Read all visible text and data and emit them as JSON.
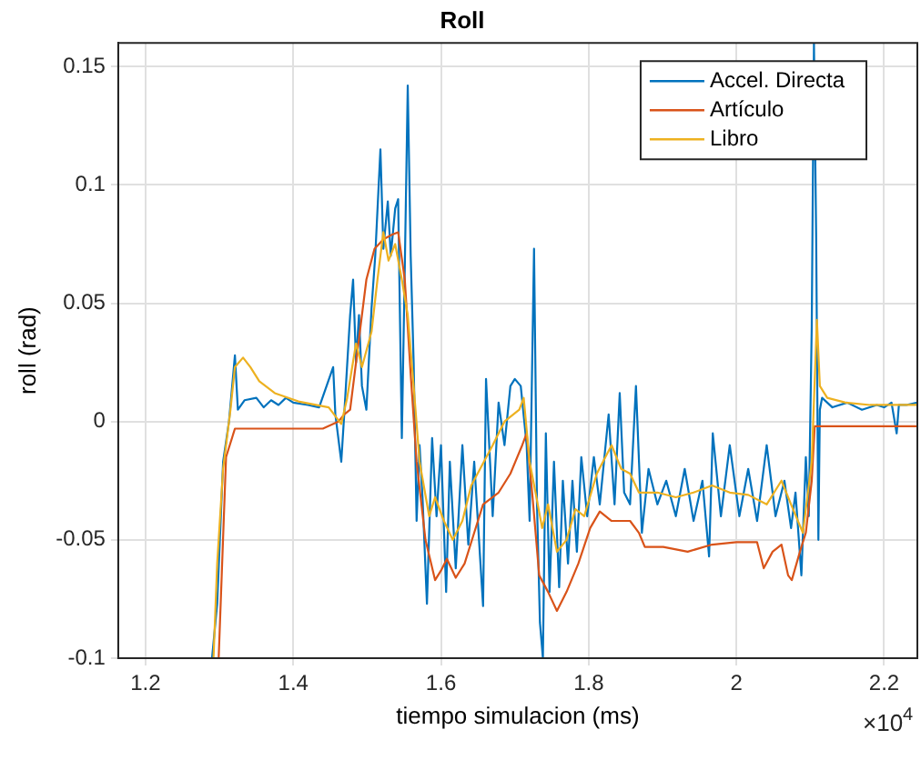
{
  "chart_data": {
    "type": "line",
    "title": "Roll",
    "xlabel": "tiempo simulacion (ms)",
    "ylabel": "roll (rad)",
    "annotations": [
      "×10$^{4}$"
    ],
    "xlim": [
      1.163,
      2.245
    ],
    "xticks": [
      1.2,
      1.4,
      1.6,
      1.8,
      2,
      2.2
    ],
    "ylim": [
      -0.1,
      0.16
    ],
    "yticks": [
      -0.1,
      -0.05,
      0,
      0.05,
      0.1,
      0.15
    ],
    "grid": true,
    "legend": "top right",
    "line_style": "solid",
    "marker": "none",
    "series": [
      {
        "name": "Accel. Directa",
        "color": "#0072bd",
        "x": [
          1.29,
          1.297,
          1.305,
          1.313,
          1.321,
          1.325,
          1.334,
          1.35,
          1.36,
          1.37,
          1.38,
          1.39,
          1.4,
          1.42,
          1.435,
          1.454,
          1.457,
          1.465,
          1.469,
          1.477,
          1.481,
          1.485,
          1.489,
          1.493,
          1.499,
          1.506,
          1.511,
          1.518,
          1.522,
          1.528,
          1.532,
          1.538,
          1.542,
          1.547,
          1.551,
          1.555,
          1.559,
          1.563,
          1.567,
          1.571,
          1.575,
          1.581,
          1.588,
          1.594,
          1.6,
          1.607,
          1.612,
          1.62,
          1.629,
          1.637,
          1.645,
          1.657,
          1.661,
          1.67,
          1.678,
          1.686,
          1.694,
          1.7,
          1.708,
          1.716,
          1.72,
          1.726,
          1.73,
          1.734,
          1.738,
          1.742,
          1.747,
          1.753,
          1.76,
          1.765,
          1.772,
          1.778,
          1.784,
          1.79,
          1.798,
          1.807,
          1.815,
          1.827,
          1.835,
          1.842,
          1.848,
          1.856,
          1.864,
          1.872,
          1.881,
          1.893,
          1.905,
          1.918,
          1.93,
          1.942,
          1.954,
          1.963,
          1.968,
          1.979,
          1.991,
          2.004,
          2.016,
          2.028,
          2.041,
          2.053,
          2.065,
          2.074,
          2.08,
          2.088,
          2.094,
          2.098,
          2.102,
          2.105,
          2.108,
          2.111,
          2.113,
          2.116,
          2.13,
          2.15,
          2.17,
          2.19,
          2.2,
          2.21,
          2.217,
          2.22,
          2.23,
          2.245
        ],
        "values": [
          -0.1,
          -0.077,
          -0.017,
          0.0,
          0.028,
          0.005,
          0.009,
          0.01,
          0.006,
          0.009,
          0.007,
          0.01,
          0.008,
          0.007,
          0.006,
          0.023,
          0.003,
          -0.017,
          0.003,
          0.045,
          0.06,
          0.025,
          0.045,
          0.015,
          0.005,
          0.048,
          0.07,
          0.115,
          0.073,
          0.093,
          0.07,
          0.09,
          0.094,
          -0.007,
          0.065,
          0.142,
          0.07,
          0.025,
          -0.042,
          -0.01,
          -0.032,
          -0.077,
          -0.007,
          -0.04,
          -0.01,
          -0.072,
          -0.017,
          -0.062,
          -0.01,
          -0.052,
          -0.017,
          -0.078,
          0.018,
          -0.04,
          0.008,
          -0.01,
          0.015,
          0.018,
          0.015,
          -0.01,
          -0.042,
          0.073,
          -0.035,
          -0.085,
          -0.1,
          -0.005,
          -0.072,
          -0.017,
          -0.07,
          -0.025,
          -0.06,
          -0.025,
          -0.055,
          -0.015,
          -0.04,
          -0.015,
          -0.035,
          0.003,
          -0.035,
          0.012,
          -0.03,
          -0.035,
          0.015,
          -0.047,
          -0.02,
          -0.035,
          -0.025,
          -0.04,
          -0.02,
          -0.042,
          -0.025,
          -0.057,
          -0.005,
          -0.04,
          -0.01,
          -0.04,
          -0.02,
          -0.042,
          -0.01,
          -0.04,
          -0.025,
          -0.045,
          -0.03,
          -0.065,
          -0.015,
          -0.04,
          0.04,
          0.16,
          0.078,
          -0.05,
          0.005,
          0.01,
          0.006,
          0.008,
          0.005,
          0.007,
          0.006,
          0.008,
          -0.005,
          0.007,
          0.007,
          0.008
        ]
      },
      {
        "name": "Artículo",
        "color": "#d95319",
        "x": [
          1.299,
          1.309,
          1.321,
          1.44,
          1.461,
          1.469,
          1.477,
          1.489,
          1.499,
          1.51,
          1.522,
          1.534,
          1.542,
          1.551,
          1.559,
          1.567,
          1.579,
          1.592,
          1.6,
          1.608,
          1.62,
          1.632,
          1.645,
          1.657,
          1.678,
          1.694,
          1.71,
          1.716,
          1.724,
          1.733,
          1.745,
          1.757,
          1.77,
          1.786,
          1.802,
          1.815,
          1.831,
          1.844,
          1.856,
          1.868,
          1.876,
          1.901,
          1.934,
          1.967,
          2.0,
          2.028,
          2.037,
          2.049,
          2.061,
          2.07,
          2.075,
          2.086,
          2.094,
          2.102,
          2.106,
          2.245
        ],
        "values": [
          -0.1,
          -0.015,
          -0.003,
          -0.003,
          0.0,
          0.003,
          0.005,
          0.035,
          0.06,
          0.073,
          0.077,
          0.079,
          0.08,
          0.06,
          0.02,
          -0.017,
          -0.05,
          -0.067,
          -0.063,
          -0.058,
          -0.066,
          -0.06,
          -0.047,
          -0.035,
          -0.03,
          -0.022,
          -0.01,
          -0.005,
          -0.032,
          -0.065,
          -0.072,
          -0.08,
          -0.072,
          -0.06,
          -0.045,
          -0.038,
          -0.042,
          -0.042,
          -0.042,
          -0.047,
          -0.053,
          -0.053,
          -0.055,
          -0.052,
          -0.051,
          -0.051,
          -0.062,
          -0.055,
          -0.052,
          -0.065,
          -0.067,
          -0.055,
          -0.047,
          -0.025,
          -0.002,
          -0.002
        ]
      },
      {
        "name": "Libro",
        "color": "#edb120",
        "x": [
          1.292,
          1.297,
          1.305,
          1.315,
          1.321,
          1.332,
          1.342,
          1.354,
          1.375,
          1.407,
          1.448,
          1.465,
          1.473,
          1.485,
          1.493,
          1.506,
          1.514,
          1.522,
          1.529,
          1.538,
          1.547,
          1.555,
          1.563,
          1.571,
          1.584,
          1.592,
          1.604,
          1.616,
          1.629,
          1.641,
          1.653,
          1.67,
          1.686,
          1.706,
          1.712,
          1.72,
          1.728,
          1.737,
          1.745,
          1.757,
          1.77,
          1.782,
          1.794,
          1.811,
          1.831,
          1.844,
          1.856,
          1.868,
          1.893,
          1.918,
          1.942,
          1.967,
          1.991,
          2.016,
          2.041,
          2.061,
          2.074,
          2.09,
          2.102,
          2.109,
          2.113,
          2.123,
          2.148,
          2.181,
          2.245
        ],
        "values": [
          -0.1,
          -0.06,
          -0.02,
          0.005,
          0.023,
          0.027,
          0.023,
          0.017,
          0.012,
          0.0085,
          0.006,
          -0.001,
          0.01,
          0.033,
          0.023,
          0.038,
          0.06,
          0.08,
          0.068,
          0.075,
          0.06,
          0.045,
          0.015,
          -0.017,
          -0.04,
          -0.032,
          -0.042,
          -0.05,
          -0.042,
          -0.027,
          -0.02,
          -0.01,
          0.0,
          0.005,
          0.01,
          -0.017,
          -0.03,
          -0.045,
          -0.035,
          -0.055,
          -0.05,
          -0.037,
          -0.04,
          -0.022,
          -0.01,
          -0.02,
          -0.022,
          -0.03,
          -0.03,
          -0.032,
          -0.03,
          -0.027,
          -0.03,
          -0.031,
          -0.035,
          -0.025,
          -0.035,
          -0.047,
          -0.017,
          0.043,
          0.015,
          0.01,
          0.008,
          0.007,
          0.007
        ]
      }
    ]
  }
}
